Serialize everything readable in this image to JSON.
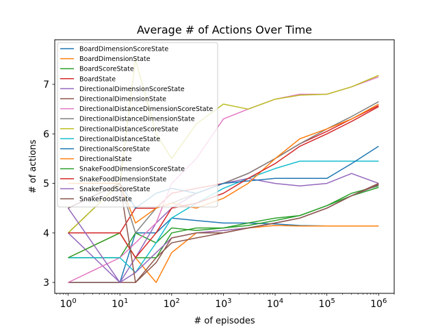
{
  "chart_data": {
    "type": "line",
    "title": "Average # of Actions Over Time",
    "xlabel": "# of episodes",
    "ylabel": "# of actions",
    "xscale": "log",
    "xlim": [
      0.55,
      2000000
    ],
    "ylim": [
      2.78,
      7.9
    ],
    "xticks": [
      {
        "value": 1,
        "base": "10",
        "exp": "0"
      },
      {
        "value": 10,
        "base": "10",
        "exp": "1"
      },
      {
        "value": 100,
        "base": "10",
        "exp": "2"
      },
      {
        "value": 1000,
        "base": "10",
        "exp": "3"
      },
      {
        "value": 10000,
        "base": "10",
        "exp": "4"
      },
      {
        "value": 100000,
        "base": "10",
        "exp": "5"
      },
      {
        "value": 1000000,
        "base": "10",
        "exp": "6"
      }
    ],
    "yticks": [
      3,
      4,
      5,
      6,
      7
    ],
    "grid": false,
    "legend_position": "top-left",
    "series": [
      {
        "name": "BoardDimensionScoreState",
        "color": "#1f77b4",
        "x": [
          1,
          10,
          20,
          50,
          100,
          300,
          1000,
          3000,
          10000,
          30000,
          100000,
          300000,
          1000000
        ],
        "y": [
          3.0,
          3.0,
          4.0,
          4.0,
          4.3,
          4.25,
          4.2,
          4.2,
          4.18,
          4.15,
          4.14,
          4.14,
          4.14
        ]
      },
      {
        "name": "BoardDimensionState",
        "color": "#ff7f0e",
        "x": [
          1,
          10,
          20,
          50,
          100,
          300,
          1000,
          3000,
          10000,
          30000,
          100000,
          300000,
          1000000
        ],
        "y": [
          3.5,
          4.0,
          3.5,
          3.0,
          3.6,
          4.0,
          4.05,
          4.1,
          4.15,
          4.14,
          4.14,
          4.14,
          4.14
        ]
      },
      {
        "name": "BoardScoreState",
        "color": "#2ca02c",
        "x": [
          1,
          10,
          20,
          50,
          100,
          300,
          1000,
          3000,
          10000,
          30000,
          100000,
          300000,
          1000000
        ],
        "y": [
          3.5,
          3.5,
          4.0,
          3.8,
          4.1,
          4.05,
          4.1,
          4.15,
          4.25,
          4.35,
          4.55,
          4.8,
          4.95
        ]
      },
      {
        "name": "BoardState",
        "color": "#d62728",
        "x": [
          1,
          10,
          20,
          50,
          100,
          300,
          1000,
          3000,
          10000,
          30000,
          100000,
          300000,
          1000000
        ],
        "y": [
          4.0,
          4.0,
          4.5,
          4.5,
          4.8,
          4.9,
          5.0,
          5.2,
          5.5,
          5.8,
          6.05,
          6.3,
          6.57
        ]
      },
      {
        "name": "DirectionalDimensionScoreState",
        "color": "#9467bd",
        "x": [
          1,
          10,
          20,
          50,
          100,
          300,
          1000,
          3000,
          10000,
          30000,
          100000,
          300000,
          1000000
        ],
        "y": [
          4.0,
          3.0,
          3.5,
          4.2,
          4.5,
          4.8,
          5.0,
          5.1,
          5.0,
          4.95,
          5.0,
          5.2,
          5.0
        ]
      },
      {
        "name": "DirectionalDimensionState",
        "color": "#8c564b",
        "x": [
          1,
          10,
          20,
          50,
          100,
          300,
          1000,
          3000,
          10000,
          30000,
          100000,
          300000,
          1000000
        ],
        "y": [
          3.0,
          3.0,
          3.0,
          3.5,
          3.8,
          3.9,
          4.0,
          4.1,
          4.2,
          4.3,
          4.5,
          4.75,
          5.0
        ]
      },
      {
        "name": "DirectionalDistanceDimensionScoreState",
        "color": "#e377c2",
        "x": [
          1,
          10,
          20,
          50,
          100,
          300,
          1000,
          3000,
          10000,
          30000,
          100000,
          300000,
          1000000
        ],
        "y": [
          3.0,
          3.5,
          3.8,
          4.2,
          5.0,
          5.5,
          6.3,
          6.5,
          6.7,
          6.8,
          6.8,
          6.95,
          7.15
        ]
      },
      {
        "name": "DirectionalDistanceDimensionState",
        "color": "#7f7f7f",
        "x": [
          1,
          10,
          20,
          50,
          100,
          300,
          1000,
          3000,
          10000,
          30000,
          100000,
          300000,
          1000000
        ],
        "y": [
          4.0,
          5.0,
          4.0,
          4.5,
          4.6,
          4.8,
          5.0,
          5.2,
          5.5,
          5.8,
          6.1,
          6.35,
          6.65
        ]
      },
      {
        "name": "DirectionalDistanceScoreState",
        "color": "#bcbd22",
        "x": [
          1,
          10,
          20,
          50,
          100,
          300,
          1000,
          3000,
          10000,
          30000,
          100000,
          300000,
          1000000
        ],
        "y": [
          4.0,
          5.0,
          7.5,
          6.0,
          5.5,
          6.2,
          6.6,
          6.5,
          6.7,
          6.78,
          6.8,
          6.95,
          7.18
        ]
      },
      {
        "name": "DirectionalDistanceState",
        "color": "#17becf",
        "x": [
          1,
          10,
          20,
          50,
          100,
          300,
          1000,
          3000,
          10000,
          30000,
          100000,
          300000,
          1000000
        ],
        "y": [
          3.5,
          3.5,
          3.2,
          3.8,
          4.3,
          4.6,
          4.9,
          5.1,
          5.3,
          5.45,
          5.45,
          5.45,
          5.45
        ]
      },
      {
        "name": "DirectionalScoreState",
        "color": "#1f77b4",
        "x": [
          1,
          10,
          20,
          50,
          100,
          300,
          1000,
          3000,
          10000,
          30000,
          100000,
          300000,
          1000000
        ],
        "y": [
          4.5,
          5.0,
          4.5,
          4.8,
          4.9,
          4.8,
          5.0,
          5.05,
          5.1,
          5.1,
          5.1,
          5.4,
          5.75
        ]
      },
      {
        "name": "DirectionalState",
        "color": "#ff7f0e",
        "x": [
          1,
          10,
          20,
          50,
          100,
          300,
          1000,
          3000,
          10000,
          30000,
          100000,
          300000,
          1000000
        ],
        "y": [
          5.0,
          5.0,
          4.2,
          4.5,
          4.6,
          4.5,
          4.7,
          5.0,
          5.5,
          5.9,
          6.1,
          6.3,
          6.6
        ]
      },
      {
        "name": "SnakeFoodDimensionScoreState",
        "color": "#2ca02c",
        "x": [
          1,
          10,
          20,
          50,
          100,
          300,
          1000,
          3000,
          10000,
          30000,
          100000,
          300000,
          1000000
        ],
        "y": [
          3.5,
          4.0,
          3.5,
          3.5,
          4.0,
          4.1,
          4.1,
          4.2,
          4.3,
          4.35,
          4.55,
          4.75,
          4.92
        ]
      },
      {
        "name": "SnakeFoodDimensionState",
        "color": "#d62728",
        "x": [
          1,
          10,
          20,
          50,
          100,
          300,
          1000,
          3000,
          10000,
          30000,
          100000,
          300000,
          1000000
        ],
        "y": [
          4.0,
          4.0,
          3.5,
          4.0,
          4.5,
          4.6,
          4.8,
          5.1,
          5.4,
          5.75,
          6.0,
          6.25,
          6.55
        ]
      },
      {
        "name": "SnakeFoodScoreState",
        "color": "#9467bd",
        "x": [
          1,
          10,
          20,
          50,
          100,
          300,
          1000,
          3000,
          10000,
          30000,
          100000,
          300000,
          1000000
        ],
        "y": [
          4.5,
          3.0,
          3.2,
          3.6,
          3.9,
          4.0,
          4.05,
          4.1,
          4.2,
          4.3,
          4.5,
          4.75,
          4.97
        ]
      },
      {
        "name": "SnakeFoodState",
        "color": "#8c564b",
        "x": [
          1,
          10,
          20,
          50,
          100,
          300,
          1000,
          3000,
          10000,
          30000,
          100000,
          300000,
          1000000
        ],
        "y": [
          4.5,
          5.0,
          3.0,
          3.4,
          3.9,
          4.0,
          4.0,
          4.1,
          4.2,
          4.3,
          4.5,
          4.75,
          4.98
        ]
      }
    ]
  }
}
